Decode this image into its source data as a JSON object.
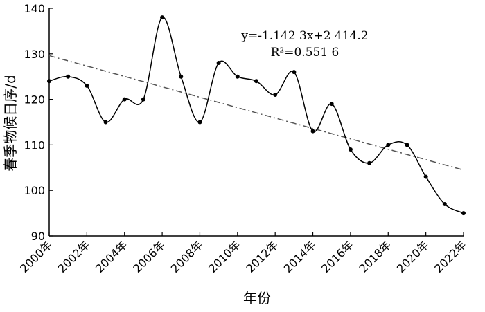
{
  "chart_data": {
    "type": "line",
    "xlabel": "年份",
    "ylabel": "春季物候日序/d",
    "ylim": [
      90,
      140
    ],
    "yticks": [
      90,
      100,
      110,
      120,
      130,
      140
    ],
    "x": [
      2000,
      2001,
      2002,
      2003,
      2004,
      2005,
      2006,
      2007,
      2008,
      2009,
      2010,
      2011,
      2012,
      2013,
      2014,
      2015,
      2016,
      2017,
      2018,
      2019,
      2020,
      2021,
      2022
    ],
    "xtick_labels": [
      "2000年",
      "2002年",
      "2004年",
      "2006年",
      "2008年",
      "2010年",
      "2012年",
      "2014年",
      "2016年",
      "2018年",
      "2020年",
      "2022年"
    ],
    "xtick_values": [
      2000,
      2002,
      2004,
      2006,
      2008,
      2010,
      2012,
      2014,
      2016,
      2018,
      2020,
      2022
    ],
    "series": [
      {
        "values": [
          124,
          125,
          123,
          115,
          120,
          120,
          138,
          125,
          115,
          128,
          125,
          124,
          121,
          126,
          113,
          119,
          109,
          106,
          110,
          110,
          103,
          97,
          95
        ]
      }
    ],
    "trendline": {
      "slope": -1.1423,
      "intercept": 2414.2,
      "equation": "y=-1.142 3x+2 414.2",
      "r2_label": "R²=0.551 6"
    },
    "grid": false,
    "legend": "none"
  }
}
